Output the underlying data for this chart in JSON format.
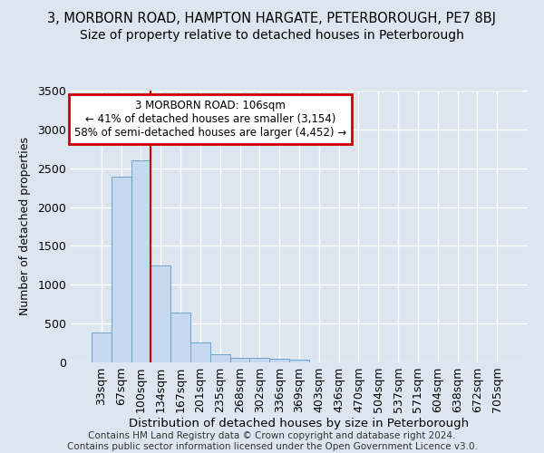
{
  "title1": "3, MORBORN ROAD, HAMPTON HARGATE, PETERBOROUGH, PE7 8BJ",
  "title2": "Size of property relative to detached houses in Peterborough",
  "xlabel": "Distribution of detached houses by size in Peterborough",
  "ylabel": "Number of detached properties",
  "categories": [
    "33sqm",
    "67sqm",
    "100sqm",
    "134sqm",
    "167sqm",
    "201sqm",
    "235sqm",
    "268sqm",
    "302sqm",
    "336sqm",
    "369sqm",
    "403sqm",
    "436sqm",
    "470sqm",
    "504sqm",
    "537sqm",
    "571sqm",
    "604sqm",
    "638sqm",
    "672sqm",
    "705sqm"
  ],
  "values": [
    390,
    2390,
    2600,
    1250,
    640,
    255,
    100,
    60,
    55,
    45,
    30,
    0,
    0,
    0,
    0,
    0,
    0,
    0,
    0,
    0,
    0
  ],
  "bar_color": "#c5d8ef",
  "bar_edge_color": "#6ea3cc",
  "vline_color": "#cc0000",
  "vline_pos": 2.5,
  "annotation_text": "3 MORBORN ROAD: 106sqm\n← 41% of detached houses are smaller (3,154)\n58% of semi-detached houses are larger (4,452) →",
  "annotation_box_facecolor": "#ffffff",
  "annotation_box_edgecolor": "#cc0000",
  "ylim_max": 3500,
  "yticks": [
    0,
    500,
    1000,
    1500,
    2000,
    2500,
    3000,
    3500
  ],
  "bg_color": "#dde6f0",
  "grid_color": "#ffffff",
  "footer": "Contains HM Land Registry data © Crown copyright and database right 2024.\nContains public sector information licensed under the Open Government Licence v3.0."
}
